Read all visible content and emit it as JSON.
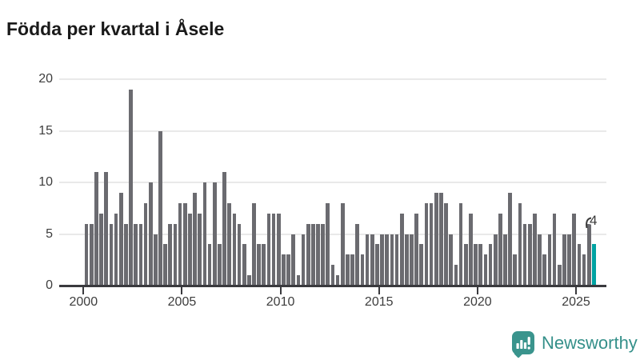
{
  "title": "Födda per kvartal i Åsele",
  "chart_data": {
    "type": "bar",
    "title": "Födda per kvartal i Åsele",
    "xlabel": "",
    "ylabel": "",
    "ylim": [
      0,
      20
    ],
    "y_ticks": [
      0,
      5,
      10,
      15,
      20
    ],
    "x_tick_labels": [
      "2000",
      "2005",
      "2010",
      "2015",
      "2020",
      "2025"
    ],
    "grid": "horizontal",
    "start_period": "2000 K1",
    "end_period": "2025 K4",
    "highlight_last_bar": true,
    "annotation_label": "4",
    "years": [
      {
        "year": 2000,
        "values": [
          6,
          6,
          11,
          7
        ]
      },
      {
        "year": 2001,
        "values": [
          11,
          6,
          7,
          9
        ]
      },
      {
        "year": 2002,
        "values": [
          6,
          19,
          6,
          6
        ]
      },
      {
        "year": 2003,
        "values": [
          8,
          10,
          5,
          15
        ]
      },
      {
        "year": 2004,
        "values": [
          4,
          6,
          6,
          8
        ]
      },
      {
        "year": 2005,
        "values": [
          8,
          7,
          9,
          7
        ]
      },
      {
        "year": 2006,
        "values": [
          10,
          4,
          10,
          4
        ]
      },
      {
        "year": 2007,
        "values": [
          11,
          8,
          7,
          6
        ]
      },
      {
        "year": 2008,
        "values": [
          4,
          1,
          8,
          4
        ]
      },
      {
        "year": 2009,
        "values": [
          4,
          7,
          7,
          7
        ]
      },
      {
        "year": 2010,
        "values": [
          3,
          3,
          5,
          1
        ]
      },
      {
        "year": 2011,
        "values": [
          5,
          6,
          6,
          6
        ]
      },
      {
        "year": 2012,
        "values": [
          6,
          8,
          2,
          1
        ]
      },
      {
        "year": 2013,
        "values": [
          8,
          3,
          3,
          6
        ]
      },
      {
        "year": 2014,
        "values": [
          3,
          5,
          5,
          4
        ]
      },
      {
        "year": 2015,
        "values": [
          5,
          5,
          5,
          5
        ]
      },
      {
        "year": 2016,
        "values": [
          7,
          5,
          5,
          7
        ]
      },
      {
        "year": 2017,
        "values": [
          4,
          8,
          8,
          9
        ]
      },
      {
        "year": 2018,
        "values": [
          9,
          8,
          5,
          2
        ]
      },
      {
        "year": 2019,
        "values": [
          8,
          4,
          7,
          4
        ]
      },
      {
        "year": 2020,
        "values": [
          4,
          3,
          4,
          5
        ]
      },
      {
        "year": 2021,
        "values": [
          7,
          5,
          9,
          3
        ]
      },
      {
        "year": 2022,
        "values": [
          8,
          6,
          6,
          7
        ]
      },
      {
        "year": 2023,
        "values": [
          5,
          3,
          5,
          7
        ]
      },
      {
        "year": 2024,
        "values": [
          2,
          5,
          5,
          7
        ]
      },
      {
        "year": 2025,
        "values": [
          4,
          3,
          6,
          4
        ]
      }
    ]
  },
  "colors": {
    "bar": "#6b6b70",
    "highlight": "#00a2a2",
    "grid": "#e9e9e9",
    "axis": "#3a3a3e",
    "tick_text": "#3d3d3d",
    "title_text": "#1a1a1a",
    "logo": "#3a948d"
  },
  "logo": {
    "icon": "bar-chart-exclamation-icon",
    "text": "Newsworthy"
  }
}
